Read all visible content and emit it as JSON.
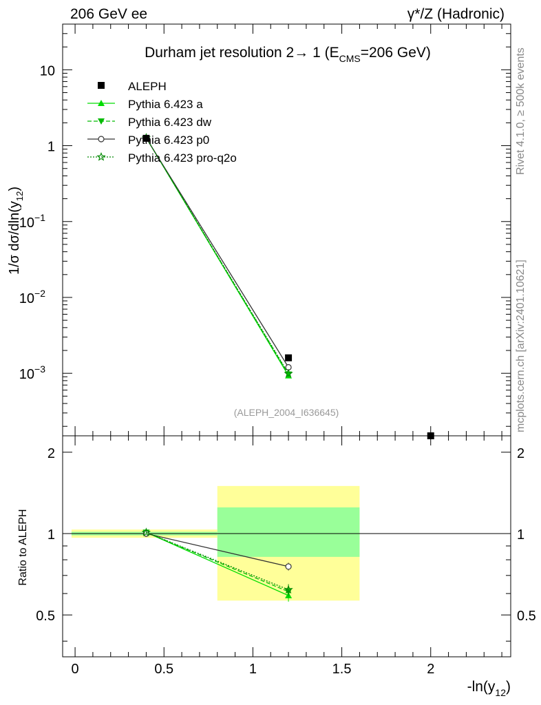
{
  "header": {
    "left": "206 GeV ee",
    "right": "γ*/Z (Hadronic)"
  },
  "side_labels": {
    "rivet": "Rivet 4.1.0, ≥ 500k events",
    "mcplots": "mcplots.cern.ch [arXiv:2401.10621]"
  },
  "chart_data": {
    "type": "line",
    "title": "Durham jet resolution 2→ 1 (E",
    "title_sub": "CMS",
    "title_tail": "=206 GeV)",
    "analysis_id": "(ALEPH_2004_I636645)",
    "ylabel": "1/σ  dσ/dln(y",
    "ylabel_sub": "12",
    "ylabel_tail": ")",
    "xlabel": "-ln(y",
    "xlabel_sub": "12",
    "xlabel_tail": ")",
    "ratio_ylabel": "Ratio to ALEPH",
    "xlim": [
      -0.07,
      2.45
    ],
    "ylim": [
      0.00015,
      40
    ],
    "yscale": "log",
    "ratio_ylim": [
      0.35,
      2.3
    ],
    "x_ticks": [
      {
        "value": 0,
        "label": "0"
      },
      {
        "value": 0.5,
        "label": "0.5"
      },
      {
        "value": 1,
        "label": "1"
      },
      {
        "value": 1.5,
        "label": "1.5"
      },
      {
        "value": 2,
        "label": "2"
      }
    ],
    "y_ticks": [
      {
        "value": 0.001,
        "base": "10",
        "exp": "−3"
      },
      {
        "value": 0.01,
        "base": "10",
        "exp": "−2"
      },
      {
        "value": 0.1,
        "base": "10",
        "exp": "−1"
      },
      {
        "value": 1,
        "base": "1",
        "exp": ""
      },
      {
        "value": 10,
        "base": "10",
        "exp": ""
      }
    ],
    "ratio_ticks": [
      {
        "value": 0.5,
        "label": "0.5"
      },
      {
        "value": 1,
        "label": "1"
      },
      {
        "value": 2,
        "label": "2"
      }
    ],
    "data": {
      "name": "ALEPH",
      "x": [
        0.4,
        1.2,
        2.0
      ],
      "y": [
        1.25,
        0.0016,
        0.00013
      ]
    },
    "bands": [
      {
        "x0": -0.02,
        "x1": 0.8,
        "inner": [
          0.985,
          1.015
        ],
        "outer": [
          0.965,
          1.035
        ]
      },
      {
        "x0": 0.8,
        "x1": 1.6,
        "inner": [
          0.82,
          1.25
        ],
        "outer": [
          0.565,
          1.5
        ]
      }
    ],
    "series": [
      {
        "name": "Pythia 6.423 a",
        "color": "#00dd00",
        "dash": "",
        "marker": "triangle-up",
        "x": [
          0.4,
          1.2
        ],
        "y": [
          1.27,
          0.00093
        ],
        "ratio": [
          1.01,
          0.59
        ],
        "ratio_err": [
          0.01,
          0.03
        ]
      },
      {
        "name": "Pythia 6.423 dw",
        "color": "#00bb00",
        "dash": "6,3",
        "marker": "triangle-down",
        "x": [
          0.4,
          1.2
        ],
        "y": [
          1.27,
          0.00097
        ],
        "ratio": [
          1.01,
          0.61
        ],
        "ratio_err": [
          0.01,
          0.03
        ]
      },
      {
        "name": "Pythia 6.423 p0",
        "color": "#333333",
        "dash": "",
        "marker": "circle-open",
        "x": [
          0.4,
          1.2
        ],
        "y": [
          1.26,
          0.0012
        ],
        "ratio": [
          1.0,
          0.755
        ],
        "ratio_err": [
          0.01,
          0.025
        ]
      },
      {
        "name": "Pythia 6.423 pro-q2o",
        "color": "#008800",
        "dash": "2,2",
        "marker": "star-open",
        "x": [
          0.4,
          1.2
        ],
        "y": [
          1.27,
          0.00099
        ],
        "ratio": [
          1.01,
          0.62
        ],
        "ratio_err": [
          0.01,
          0.03
        ]
      }
    ]
  }
}
